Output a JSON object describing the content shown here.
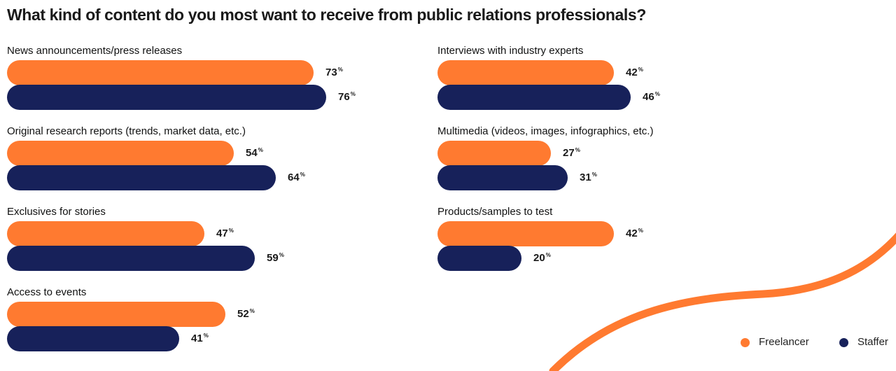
{
  "colors": {
    "freelancer": "#FF7A30",
    "staffer": "#17215A",
    "decoration": "#FF7A30"
  },
  "percent_symbol": "%",
  "chart_data": {
    "type": "bar",
    "orientation": "horizontal",
    "title": "What kind of content do you most want to receive from public relations professionals?",
    "categories": [
      "News announcements/press releases",
      "Original research reports (trends, market data, etc.)",
      "Exclusives for stories",
      "Access to events",
      "Interviews with industry experts",
      "Multimedia (videos, images, infographics, etc.)",
      "Products/samples to test"
    ],
    "series": [
      {
        "name": "Freelancer",
        "values": [
          73,
          54,
          47,
          52,
          42,
          27,
          42
        ]
      },
      {
        "name": "Staffer",
        "values": [
          76,
          64,
          59,
          41,
          46,
          31,
          20
        ]
      }
    ],
    "unit": "%",
    "xlim": [
      0,
      100
    ],
    "grid": false,
    "legend_position": "bottom-right"
  }
}
